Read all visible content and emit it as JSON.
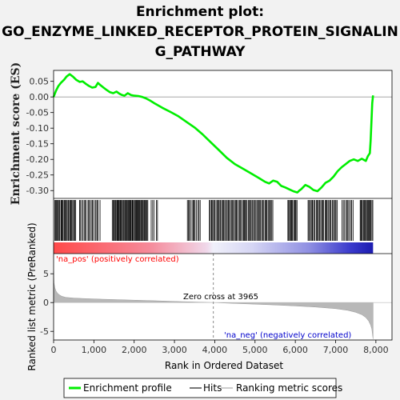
{
  "title_lines": [
    "Enrichment plot:",
    "GO_ENZYME_LINKED_RECEPTOR_PROTEIN_SIGNALIN",
    "G_PATHWAY"
  ],
  "colors": {
    "enrichment": "#00ee00",
    "hits": "#000000",
    "metric_fill": "#b8b8b8",
    "pos_label": "#ff0000",
    "neg_label": "#0000cc",
    "zero_line": "#888888",
    "background": "#f2f2f2"
  },
  "legend": {
    "enrichment_profile": "Enrichment profile",
    "hits": "Hits",
    "ranking_metric_scores": "Ranking metric scores"
  },
  "chart_data": [
    {
      "type": "line",
      "name": "Enrichment profile",
      "ylabel": "Enrichment score (ES)",
      "xlim": [
        0,
        8400
      ],
      "ylim": [
        -0.325,
        0.085
      ],
      "yticks": [
        "0.05",
        "0.00",
        "-0.05",
        "-0.10",
        "-0.15",
        "-0.20",
        "-0.25",
        "-0.30"
      ],
      "ytick_values": [
        0.05,
        0.0,
        -0.05,
        -0.1,
        -0.15,
        -0.2,
        -0.25,
        -0.3
      ],
      "grid": false,
      "x": [
        0,
        60,
        120,
        180,
        260,
        320,
        400,
        480,
        560,
        650,
        720,
        800,
        880,
        960,
        1040,
        1100,
        1160,
        1240,
        1320,
        1400,
        1480,
        1560,
        1640,
        1700,
        1760,
        1840,
        1920,
        2000,
        2100,
        2200,
        2300,
        2400,
        2500,
        2700,
        2900,
        3100,
        3300,
        3500,
        3700,
        3900,
        4100,
        4300,
        4500,
        4700,
        4900,
        5100,
        5250,
        5350,
        5450,
        5550,
        5650,
        5750,
        5850,
        5950,
        6050,
        6100,
        6150,
        6250,
        6350,
        6450,
        6550,
        6650,
        6750,
        6850,
        6950,
        7050,
        7150,
        7250,
        7350,
        7450,
        7550,
        7650,
        7750,
        7800,
        7850,
        7870,
        7890,
        7910,
        7930
      ],
      "y": [
        0.0,
        0.02,
        0.035,
        0.045,
        0.055,
        0.065,
        0.073,
        0.065,
        0.055,
        0.048,
        0.05,
        0.042,
        0.035,
        0.03,
        0.032,
        0.045,
        0.038,
        0.03,
        0.022,
        0.015,
        0.012,
        0.017,
        0.01,
        0.006,
        0.004,
        0.012,
        0.006,
        0.004,
        0.003,
        0.0,
        -0.005,
        -0.012,
        -0.02,
        -0.035,
        -0.048,
        -0.062,
        -0.08,
        -0.098,
        -0.12,
        -0.145,
        -0.17,
        -0.195,
        -0.215,
        -0.23,
        -0.245,
        -0.26,
        -0.272,
        -0.277,
        -0.268,
        -0.272,
        -0.285,
        -0.29,
        -0.296,
        -0.302,
        -0.306,
        -0.3,
        -0.295,
        -0.282,
        -0.288,
        -0.298,
        -0.302,
        -0.29,
        -0.275,
        -0.268,
        -0.255,
        -0.238,
        -0.225,
        -0.215,
        -0.205,
        -0.2,
        -0.205,
        -0.198,
        -0.205,
        -0.19,
        -0.18,
        -0.14,
        -0.08,
        -0.02,
        0.005
      ]
    },
    {
      "type": "scatter",
      "name": "Hits",
      "xlim": [
        0,
        8400
      ],
      "hit_regions": [
        {
          "from": 20,
          "to": 560,
          "count": 26
        },
        {
          "from": 620,
          "to": 1160,
          "count": 18
        },
        {
          "from": 1450,
          "to": 2350,
          "count": 48
        },
        {
          "from": 2400,
          "to": 2600,
          "count": 5
        },
        {
          "from": 3300,
          "to": 3650,
          "count": 12
        },
        {
          "from": 3850,
          "to": 5450,
          "count": 66
        },
        {
          "from": 5800,
          "to": 6050,
          "count": 12
        },
        {
          "from": 6300,
          "to": 7050,
          "count": 30
        },
        {
          "from": 7150,
          "to": 7450,
          "count": 10
        },
        {
          "from": 7600,
          "to": 7930,
          "count": 16
        }
      ]
    },
    {
      "type": "area",
      "name": "Ranking metric scores",
      "ylabel": "Ranked list metric (PreRanked)",
      "xlabel": "Rank in Ordered Dataset",
      "xlim": [
        0,
        8400
      ],
      "ylim": [
        -6.5,
        8.5
      ],
      "xticks": [
        "0",
        "1,000",
        "2,000",
        "3,000",
        "4,000",
        "5,000",
        "6,000",
        "7,000",
        "8,000"
      ],
      "xtick_values": [
        0,
        1000,
        2000,
        3000,
        4000,
        5000,
        6000,
        7000,
        8000
      ],
      "yticks": [
        "5",
        "0",
        "-5"
      ],
      "ytick_values": [
        5,
        0,
        -5
      ],
      "x": [
        0,
        10,
        30,
        60,
        100,
        150,
        200,
        300,
        500,
        800,
        1200,
        1600,
        2000,
        2500,
        3000,
        3500,
        3965,
        4500,
        5000,
        5500,
        6000,
        6500,
        7000,
        7300,
        7500,
        7650,
        7750,
        7820,
        7870,
        7900,
        7930
      ],
      "values": [
        5.5,
        3.4,
        2.6,
        2.0,
        1.6,
        1.3,
        1.1,
        0.9,
        0.78,
        0.68,
        0.58,
        0.5,
        0.42,
        0.32,
        0.2,
        0.1,
        0.0,
        -0.15,
        -0.28,
        -0.42,
        -0.58,
        -0.78,
        -1.05,
        -1.35,
        -1.7,
        -2.1,
        -2.6,
        -3.2,
        -3.9,
        -4.6,
        -6.3
      ],
      "annotations": {
        "zero_cross": "Zero cross at 3965",
        "zero_cross_x": 3965,
        "pos": "'na_pos' (positively correlated)",
        "neg": "'na_neg' (negatively correlated)"
      }
    }
  ]
}
